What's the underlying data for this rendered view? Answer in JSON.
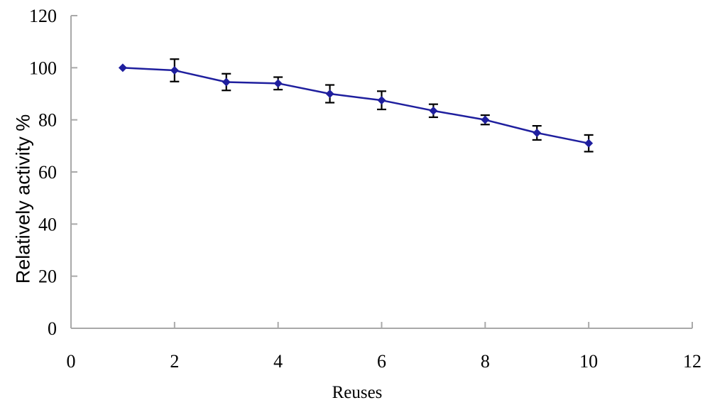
{
  "chart_data": {
    "type": "line",
    "title": "",
    "xlabel": "Reuses",
    "ylabel": "Relatively activity %",
    "x": [
      1,
      2,
      3,
      4,
      5,
      6,
      7,
      8,
      9,
      10
    ],
    "y": [
      100,
      99,
      94.5,
      94,
      90,
      87.5,
      83.5,
      80,
      75,
      71
    ],
    "yerr": [
      0,
      4.3,
      3.2,
      2.4,
      3.4,
      3.5,
      2.5,
      1.8,
      2.7,
      3.2
    ],
    "xlim": [
      0,
      12
    ],
    "ylim": [
      0,
      120
    ],
    "xticks": [
      0,
      2,
      4,
      6,
      8,
      10,
      12
    ],
    "yticks": [
      0,
      20,
      40,
      60,
      80,
      100,
      120
    ],
    "grid": false,
    "legend": "none",
    "marker": "diamond",
    "colors": {
      "line": "#1f1f9e",
      "marker": "#1f1f9e",
      "error_bar": "#000000",
      "axis": "#a9a9a9",
      "text": "#000000"
    }
  }
}
